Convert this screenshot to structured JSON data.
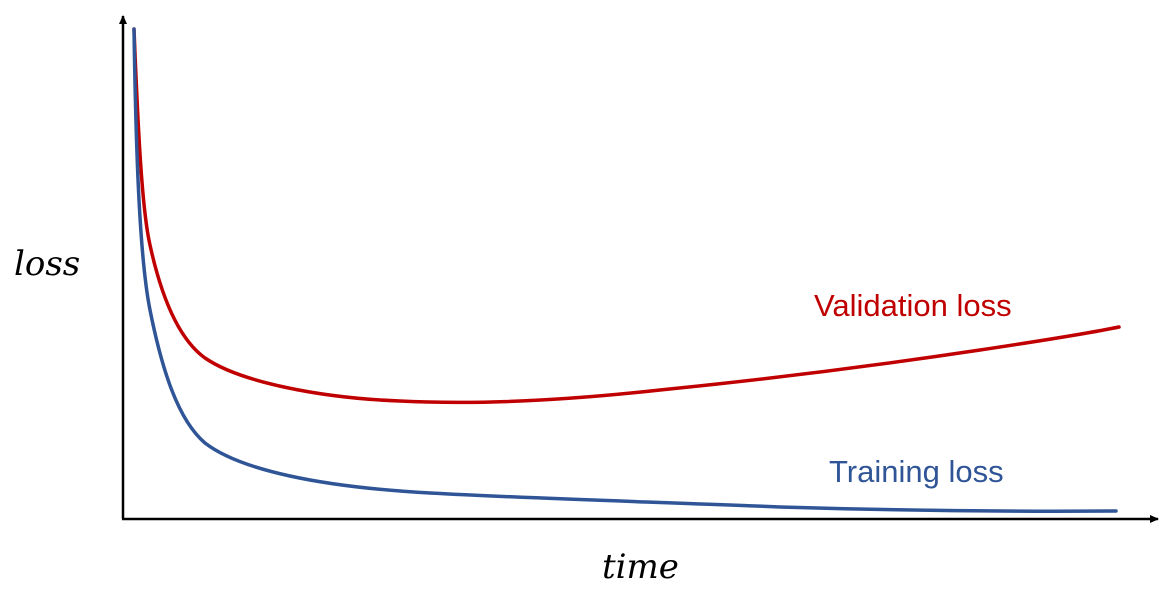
{
  "axes": {
    "xlabel": "time",
    "ylabel": "loss"
  },
  "series": [
    {
      "key": "validation",
      "label": "Validation loss",
      "color": "#c00000"
    },
    {
      "key": "training",
      "label": "Training loss",
      "color": "#2f5597"
    }
  ],
  "axis_color": "#000000"
}
